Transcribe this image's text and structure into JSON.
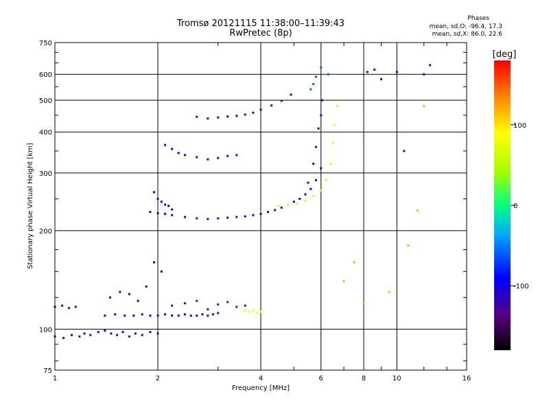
{
  "chart_data": {
    "type": "scatter",
    "title": "Tromsø 20121115 11:38:00–11:39:43",
    "subtitle": "RwPretec (8p)",
    "phases_box": {
      "heading": "Phases",
      "line1": "mean, sd,O: -96.4, 17.3",
      "line2": "mean, sd,X:  86.0, 22.6"
    },
    "xlabel": "Frequency [MHz]",
    "ylabel": "Stationary phase Virtual Height [km]",
    "x_scale": "log",
    "y_scale": "log",
    "xlim": [
      1,
      16
    ],
    "ylim": [
      75,
      750
    ],
    "x_ticks": [
      1,
      2,
      4,
      6,
      8,
      10,
      16
    ],
    "y_ticks": [
      75,
      100,
      200,
      300,
      400,
      500,
      600,
      750
    ],
    "grid": true,
    "colorbar": {
      "label": "[deg]",
      "range": [
        -180,
        180
      ],
      "ticks": [
        -100,
        0,
        100
      ]
    },
    "traces": [
      {
        "x": [
          1.0,
          1.06,
          1.12,
          1.18,
          1.22,
          1.27,
          1.34,
          1.4,
          1.46,
          1.52,
          1.58,
          1.65,
          1.72,
          1.8,
          1.9,
          2.0
        ],
        "y": [
          95,
          94,
          96,
          95,
          97,
          96,
          98,
          99,
          97,
          96,
          98,
          95,
          97,
          96,
          98,
          97
        ],
        "phase": -110
      },
      {
        "x": [
          1.0,
          1.05,
          1.1,
          1.15
        ],
        "y": [
          117,
          118,
          116,
          117
        ],
        "phase": -105
      },
      {
        "x": [
          1.4,
          1.5,
          1.6,
          1.7,
          1.8,
          1.9,
          2.0,
          2.1,
          2.2,
          2.3,
          2.4,
          2.5,
          2.6,
          2.7,
          2.8,
          2.9,
          3.0
        ],
        "y": [
          110,
          111,
          110,
          110,
          111,
          110,
          110,
          111,
          110,
          110,
          111,
          110,
          110,
          111,
          110,
          111,
          112
        ],
        "phase": -100
      },
      {
        "x": [
          1.45,
          1.55,
          1.65,
          1.75,
          1.85,
          1.95,
          2.05
        ],
        "y": [
          125,
          130,
          128,
          122,
          135,
          160,
          150
        ],
        "phase": -95
      },
      {
        "x": [
          2.2,
          2.4,
          2.6,
          2.8,
          3.0,
          3.2,
          3.4,
          3.6
        ],
        "y": [
          118,
          120,
          122,
          115,
          119,
          121,
          117,
          118
        ],
        "phase": -80
      },
      {
        "x": [
          3.6,
          3.7,
          3.8,
          3.9,
          4.0
        ],
        "y": [
          114,
          113,
          114,
          112,
          113
        ],
        "phase": 90
      },
      {
        "x": [
          1.9,
          2.0,
          2.1,
          2.2,
          2.4,
          2.6,
          2.8,
          3.0,
          3.2,
          3.4,
          3.6,
          3.8,
          4.0,
          4.2,
          4.4,
          4.6,
          4.8,
          5.0,
          5.2,
          5.4,
          5.6,
          5.8,
          6.0
        ],
        "y": [
          228,
          226,
          225,
          223,
          220,
          218,
          217,
          218,
          219,
          220,
          221,
          223,
          225,
          228,
          231,
          235,
          240,
          245,
          250,
          258,
          268,
          285,
          310
        ],
        "phase": -105
      },
      {
        "x": [
          1.95,
          2.0,
          2.05,
          2.1,
          2.15,
          2.2
        ],
        "y": [
          262,
          250,
          245,
          240,
          238,
          232
        ],
        "phase": -90
      },
      {
        "x": [
          4.5,
          4.8,
          5.1,
          5.4,
          5.7,
          6.0,
          6.2,
          6.4,
          6.5,
          6.6,
          6.7
        ],
        "y": [
          238,
          240,
          242,
          247,
          255,
          265,
          285,
          320,
          370,
          420,
          480
        ],
        "phase": 95
      },
      {
        "x": [
          5.5,
          5.7,
          5.8,
          5.9,
          6.0,
          6.05
        ],
        "y": [
          280,
          320,
          360,
          410,
          450,
          500
        ],
        "phase": -110
      },
      {
        "x": [
          2.1,
          2.2,
          2.3,
          2.4,
          2.6,
          2.8,
          3.0,
          3.2,
          3.4
        ],
        "y": [
          365,
          355,
          345,
          340,
          335,
          330,
          333,
          338,
          340
        ],
        "phase": -100
      },
      {
        "x": [
          2.6,
          2.8,
          3.0,
          3.2,
          3.4,
          3.6,
          3.8,
          4.0,
          4.3,
          4.6,
          4.9
        ],
        "y": [
          445,
          440,
          443,
          446,
          448,
          452,
          458,
          468,
          482,
          498,
          520
        ],
        "phase": -105
      },
      {
        "x": [
          5.6,
          5.7,
          5.8,
          6.0,
          6.3
        ],
        "y": [
          540,
          560,
          590,
          630,
          600
        ],
        "phase": -60
      },
      {
        "x": [
          8.2,
          8.6,
          9.0,
          10.0,
          10.5,
          12.0,
          12.5
        ],
        "y": [
          610,
          620,
          580,
          610,
          350,
          600,
          640
        ],
        "phase": -100
      },
      {
        "x": [
          7.0,
          7.5,
          8.0,
          9.5,
          10.8,
          11.5,
          12.0
        ],
        "y": [
          140,
          160,
          120,
          130,
          180,
          230,
          480
        ],
        "phase": 120
      }
    ]
  }
}
